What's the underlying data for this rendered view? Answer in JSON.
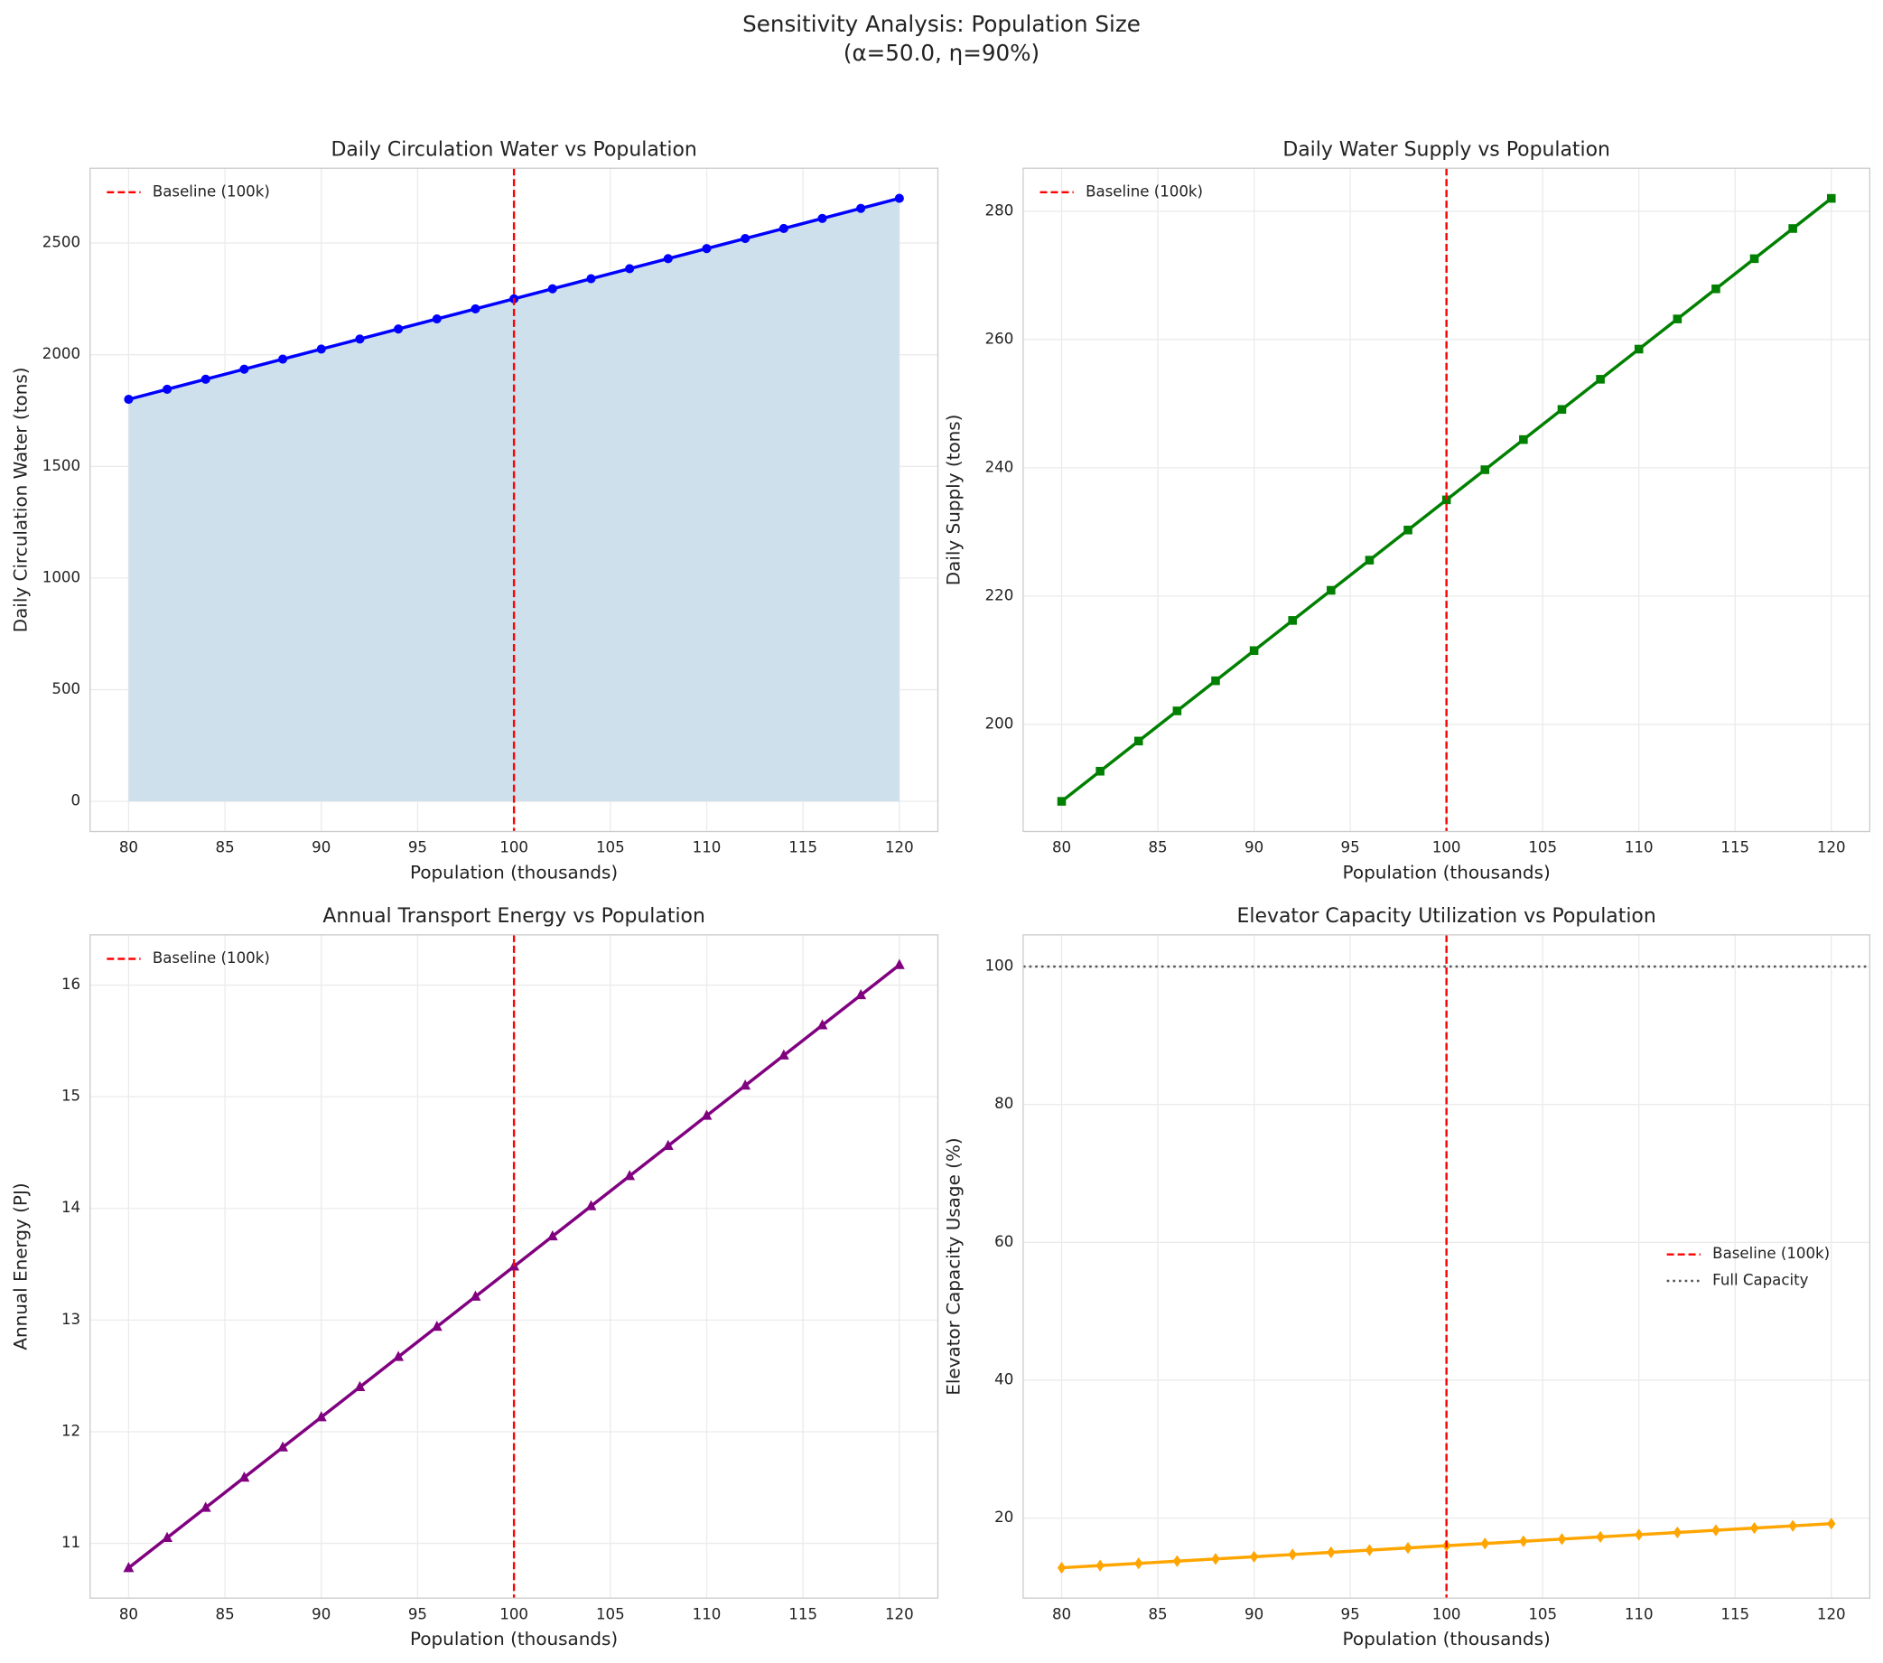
{
  "suptitle": {
    "title": "Sensitivity Analysis: Population Size",
    "subtitle": "(α=50.0, η=90%)"
  },
  "chart_data": [
    {
      "type": "line",
      "title": "Daily Circulation Water vs Population",
      "x_label": "Population (thousands)",
      "y_label": "Daily Circulation Water (tons)",
      "x": [
        80,
        82,
        84,
        86,
        88,
        90,
        92,
        94,
        96,
        98,
        100,
        102,
        104,
        106,
        108,
        110,
        112,
        114,
        116,
        118,
        120
      ],
      "series": [
        {
          "color": "#0000ff",
          "marker": "circle",
          "fill": "#cfe0ed",
          "values": [
            1800,
            1845,
            1890,
            1935,
            1980,
            2025,
            2070,
            2115,
            2160,
            2205,
            2250,
            2295,
            2340,
            2385,
            2430,
            2475,
            2520,
            2565,
            2610,
            2655,
            2700
          ]
        }
      ],
      "vline": {
        "x": 100,
        "name": "Baseline (100k)",
        "color": "#ff0000"
      },
      "xlim": [
        78,
        122
      ],
      "xticks": [
        80,
        85,
        90,
        95,
        100,
        105,
        110,
        115,
        120
      ],
      "ylim": [
        -135,
        2835
      ],
      "yticks": [
        0,
        500,
        1000,
        1500,
        2000,
        2500
      ],
      "grid": true,
      "legend": "upper left"
    },
    {
      "type": "line",
      "title": "Daily Water Supply vs Population",
      "x_label": "Population (thousands)",
      "y_label": "Daily Supply (tons)",
      "x": [
        80,
        82,
        84,
        86,
        88,
        90,
        92,
        94,
        96,
        98,
        100,
        102,
        104,
        106,
        108,
        110,
        112,
        114,
        116,
        118,
        120
      ],
      "series": [
        {
          "color": "#008000",
          "marker": "square",
          "values": [
            188,
            192.7,
            197.4,
            202.1,
            206.8,
            211.5,
            216.2,
            220.9,
            225.6,
            230.3,
            235,
            239.7,
            244.4,
            249.1,
            253.8,
            258.5,
            263.2,
            267.9,
            272.6,
            277.3,
            282
          ]
        }
      ],
      "vline": {
        "x": 100,
        "name": "Baseline (100k)",
        "color": "#ff0000"
      },
      "xlim": [
        78,
        122
      ],
      "xticks": [
        80,
        85,
        90,
        95,
        100,
        105,
        110,
        115,
        120
      ],
      "ylim": [
        183.3,
        286.7
      ],
      "yticks": [
        200,
        220,
        240,
        260,
        280
      ],
      "grid": true,
      "legend": "upper left"
    },
    {
      "type": "line",
      "title": "Annual Transport Energy vs Population",
      "x_label": "Population (thousands)",
      "y_label": "Annual Energy (PJ)",
      "x": [
        80,
        82,
        84,
        86,
        88,
        90,
        92,
        94,
        96,
        98,
        100,
        102,
        104,
        106,
        108,
        110,
        112,
        114,
        116,
        118,
        120
      ],
      "series": [
        {
          "color": "#800080",
          "marker": "triangle",
          "values": [
            10.78,
            11.05,
            11.32,
            11.59,
            11.86,
            12.13,
            12.4,
            12.67,
            12.94,
            13.21,
            13.48,
            13.75,
            14.02,
            14.29,
            14.56,
            14.83,
            15.1,
            15.37,
            15.64,
            15.91,
            16.18
          ]
        }
      ],
      "vline": {
        "x": 100,
        "name": "Baseline (100k)",
        "color": "#ff0000"
      },
      "xlim": [
        78,
        122
      ],
      "xticks": [
        80,
        85,
        90,
        95,
        100,
        105,
        110,
        115,
        120
      ],
      "ylim": [
        10.51,
        16.45
      ],
      "yticks": [
        11,
        12,
        13,
        14,
        15,
        16
      ],
      "grid": true,
      "legend": "upper left"
    },
    {
      "type": "line",
      "title": "Elevator Capacity Utilization vs Population",
      "x_label": "Population (thousands)",
      "y_label": "Elevator Capacity Usage (%)",
      "x": [
        80,
        82,
        84,
        86,
        88,
        90,
        92,
        94,
        96,
        98,
        100,
        102,
        104,
        106,
        108,
        110,
        112,
        114,
        116,
        118,
        120
      ],
      "series": [
        {
          "color": "#ffa500",
          "marker": "diamond",
          "values": [
            12.8,
            13.12,
            13.44,
            13.76,
            14.08,
            14.4,
            14.72,
            15.04,
            15.36,
            15.68,
            16,
            16.32,
            16.64,
            16.96,
            17.28,
            17.6,
            17.92,
            18.24,
            18.56,
            18.88,
            19.2
          ]
        }
      ],
      "vline": {
        "x": 100,
        "name": "Baseline (100k)",
        "color": "#ff0000"
      },
      "hline": {
        "y": 100,
        "name": "Full Capacity",
        "color": "#555555"
      },
      "xlim": [
        78,
        122
      ],
      "xticks": [
        80,
        85,
        90,
        95,
        100,
        105,
        110,
        115,
        120
      ],
      "ylim": [
        8.4,
        104.6
      ],
      "yticks": [
        20,
        40,
        60,
        80,
        100
      ],
      "grid": true,
      "legend": "center right"
    }
  ]
}
